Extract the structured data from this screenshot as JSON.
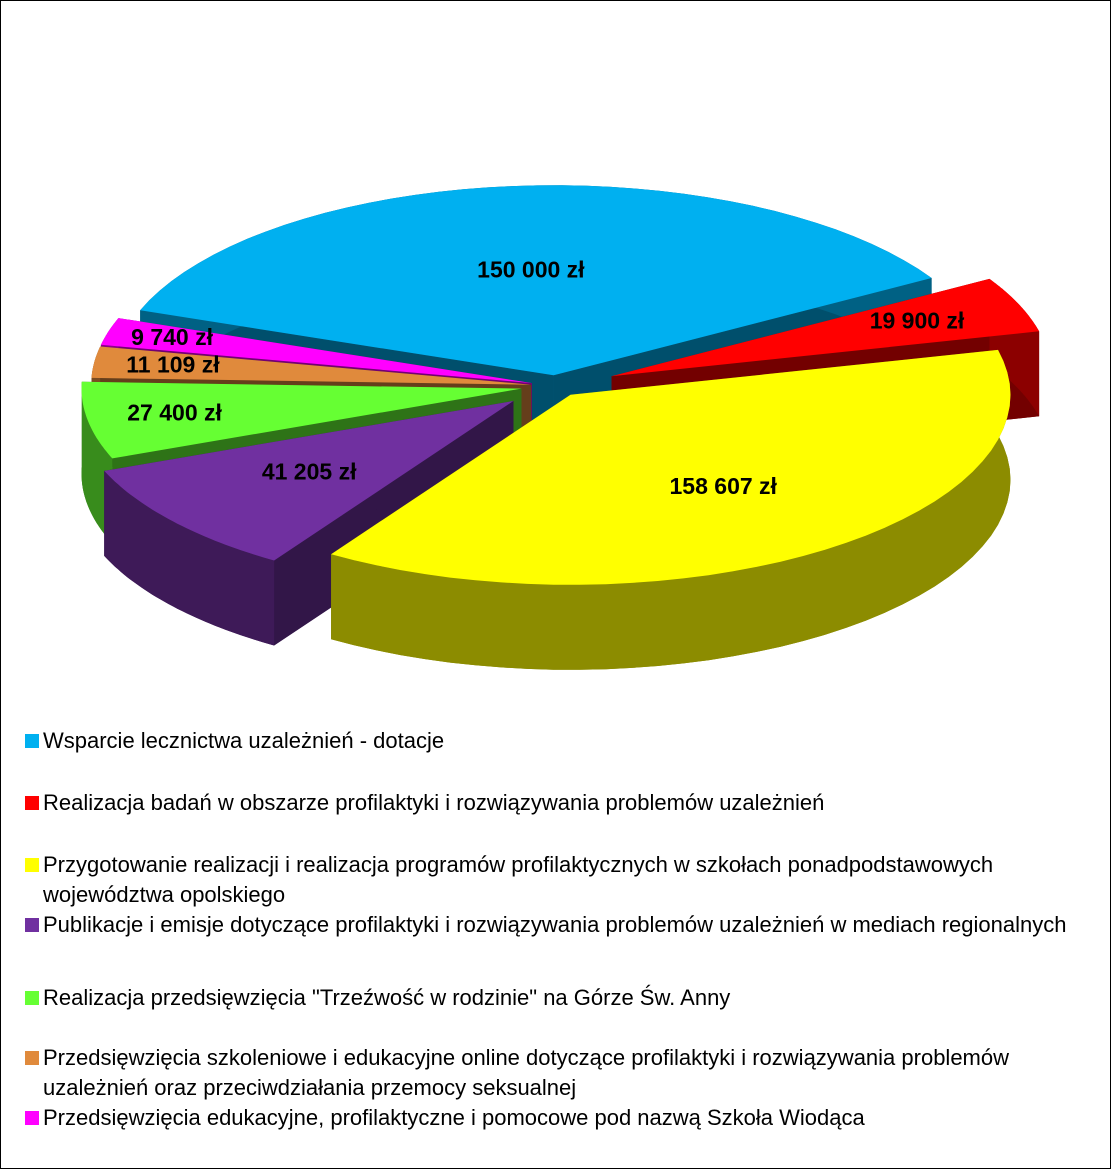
{
  "chart_data": {
    "type": "pie",
    "categories": [
      "Wsparcie lecznictwa uzależnień - dotacje",
      "Realizacja badań w obszarze profilaktyki i rozwiązywania problemów uzależnień",
      "Przygotowanie realizacji i realizacja programów profilaktycznych w szkołach ponadpodstawowych województwa opolskiego",
      "Publikacje i emisje dotyczące profilaktyki i rozwiązywania problemów uzależnień w mediach regionalnych",
      "Realizacja przedsięwzięcia \"Trzeźwość w rodzinie\" na Górze Św. Anny",
      "Przedsięwzięcia szkoleniowe i edukacyjne online dotyczące profilaktyki i rozwiązywania problemów uzależnień oraz przeciwdziałania przemocy seksualnej",
      "Przedsięwzięcia edukacyjne, profilaktyczne i pomocowe pod nazwą Szkoła Wiodąca"
    ],
    "values": [
      150000,
      19900,
      158607,
      41205,
      27400,
      11109,
      9740
    ],
    "value_labels": [
      "150 000 zł",
      "19 900 zł",
      "158 607 zł",
      "41 205 zł",
      "27 400 zł",
      "11 109 zł",
      "9 740 zł"
    ],
    "colors": [
      "#00b0f0",
      "#ff0000",
      "#ffff00",
      "#7030a0",
      "#66ff33",
      "#e08a3c",
      "#ff00ff"
    ]
  }
}
